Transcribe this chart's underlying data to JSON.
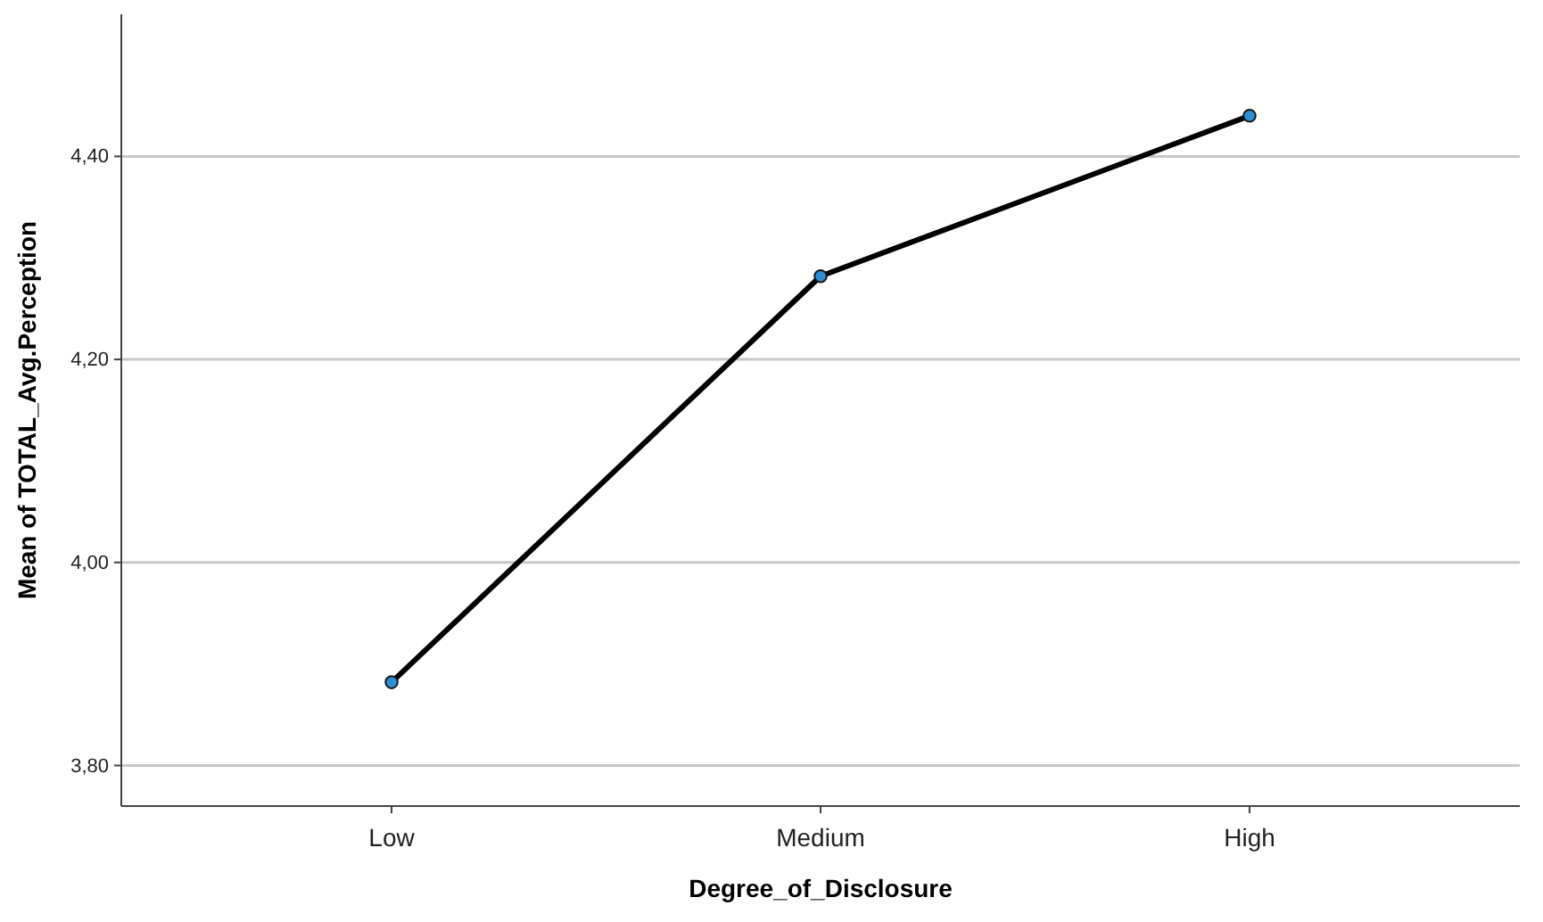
{
  "chart_data": {
    "type": "line",
    "xlabel": "Degree_of_Disclosure",
    "ylabel": "Mean of TOTAL_Avg.Perception",
    "categories": [
      "Low",
      "Medium",
      "High"
    ],
    "series": [
      {
        "color": "#000000",
        "values": [
          3.882,
          4.282,
          4.44
        ]
      }
    ],
    "ylim": [
      3.76,
      4.54
    ],
    "yticks": [
      {
        "value": 3.8,
        "label": "3,80"
      },
      {
        "value": 4.0,
        "label": "4,00"
      },
      {
        "value": 4.2,
        "label": "4,20"
      },
      {
        "value": 4.4,
        "label": "4,40"
      }
    ],
    "grid": "y",
    "marker": "circle",
    "line_style": "solid"
  }
}
